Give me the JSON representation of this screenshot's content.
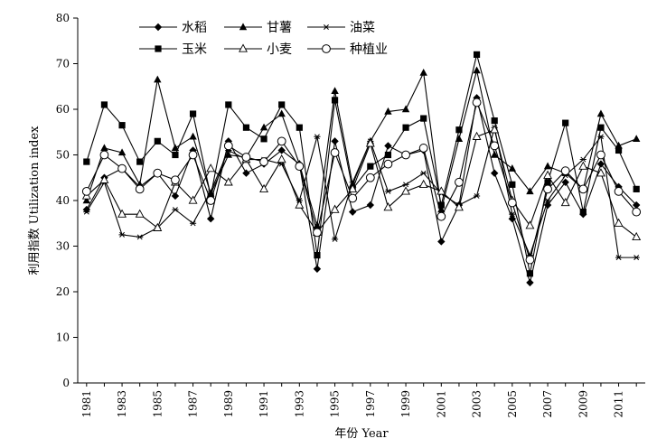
{
  "chart_data": {
    "type": "line",
    "title": "",
    "xlabel": "年份 Year",
    "ylabel": "利用指数 Utilization index",
    "ylim": [
      0,
      80
    ],
    "yticks": [
      0,
      10,
      20,
      30,
      40,
      50,
      60,
      70,
      80
    ],
    "xlim": [
      1981,
      2012
    ],
    "xtick_labels": [
      "1981",
      "1983",
      "1985",
      "1987",
      "1989",
      "1991",
      "1993",
      "1995",
      "1997",
      "1999",
      "2001",
      "2003",
      "2005",
      "2007",
      "2009",
      "2011"
    ],
    "grid": false,
    "legend_position": "top-left",
    "x": [
      1981,
      1982,
      1983,
      1984,
      1985,
      1986,
      1987,
      1988,
      1989,
      1990,
      1991,
      1992,
      1993,
      1994,
      1995,
      1996,
      1997,
      1998,
      1999,
      2000,
      2001,
      2002,
      2003,
      2004,
      2005,
      2006,
      2007,
      2008,
      2009,
      2010,
      2011,
      2012
    ],
    "series": [
      {
        "name": "水稻",
        "marker": "diamond",
        "values": [
          38,
          45,
          47,
          43,
          46,
          41,
          51,
          36,
          53,
          46,
          48,
          51,
          48,
          25,
          53,
          37.5,
          39,
          52,
          50,
          51,
          31,
          39,
          62.5,
          46,
          36,
          22,
          39,
          44,
          37,
          48,
          43,
          39
        ]
      },
      {
        "name": "甘薯",
        "marker": "triangle-filled",
        "values": [
          40,
          51.5,
          50.5,
          43.5,
          66.5,
          51.5,
          54,
          41.5,
          50,
          49.5,
          56,
          59,
          48,
          34.5,
          64,
          43.5,
          53,
          59.5,
          60,
          68,
          38,
          53.5,
          68.5,
          50,
          47,
          42,
          47.5,
          46,
          42.5,
          59,
          52,
          53.5
        ]
      },
      {
        "name": "油菜",
        "marker": "star",
        "values": [
          37.5,
          44,
          32.5,
          32,
          34,
          38,
          35,
          42,
          51,
          49,
          49,
          48,
          40,
          54,
          31.5,
          44,
          53,
          42,
          43.5,
          46,
          41.5,
          39,
          41,
          56,
          37,
          28,
          40,
          45.5,
          49,
          54,
          27.5,
          27.5
        ]
      },
      {
        "name": "玉米",
        "marker": "square",
        "values": [
          48.5,
          61,
          56.5,
          48.5,
          53,
          50,
          59,
          41,
          61,
          56,
          53.5,
          61,
          56,
          28,
          62,
          42.5,
          47.5,
          50,
          56,
          58,
          39,
          55.5,
          72,
          57.5,
          43.5,
          24,
          44,
          57,
          37.5,
          56,
          51,
          42.5
        ]
      },
      {
        "name": "小麦",
        "marker": "triangle-open",
        "values": [
          41,
          44.5,
          37,
          37,
          34,
          44,
          40,
          47,
          44,
          49,
          42.5,
          49,
          39,
          33,
          38,
          42.5,
          52.5,
          38.5,
          42,
          43.5,
          42,
          38.5,
          54,
          55.5,
          40,
          34.5,
          45.5,
          39.5,
          47.5,
          46,
          35,
          32
        ]
      },
      {
        "name": "种植业",
        "marker": "circle",
        "values": [
          42,
          50,
          47,
          42.5,
          46,
          44.5,
          50,
          40,
          52,
          49.5,
          48.5,
          53,
          47.5,
          33,
          50.5,
          40.5,
          45,
          48,
          50,
          51.5,
          36.5,
          44,
          61.5,
          52,
          39.5,
          27,
          42.5,
          46.5,
          42.5,
          50,
          42,
          37.5
        ]
      }
    ]
  }
}
